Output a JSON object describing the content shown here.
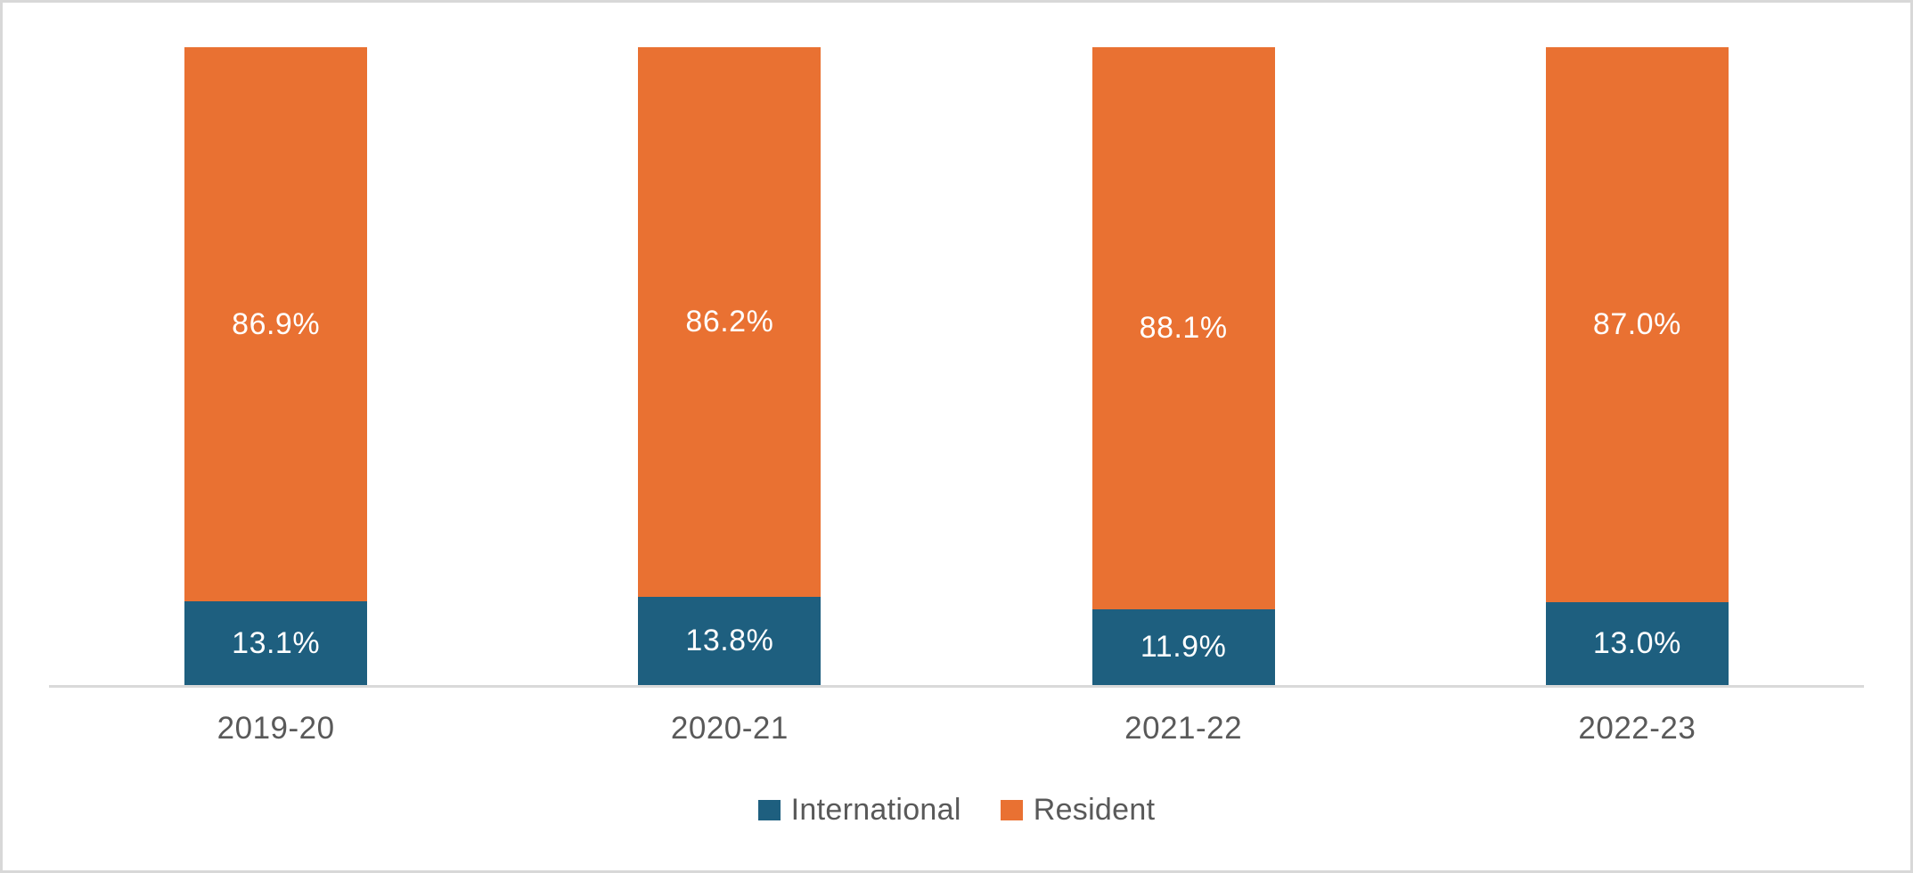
{
  "chart_data": {
    "type": "bar",
    "stacked": true,
    "percent_stacked": true,
    "title": "",
    "xlabel": "",
    "ylabel": "",
    "ylim": [
      0,
      100
    ],
    "grid": false,
    "legend_position": "bottom",
    "categories": [
      "2019-20",
      "2020-21",
      "2021-22",
      "2022-23"
    ],
    "series": [
      {
        "name": "International",
        "color": "#1E5F7F",
        "values": [
          13.1,
          13.8,
          11.9,
          13.0
        ],
        "labels": [
          "13.1%",
          "13.8%",
          "11.9%",
          "13.0%"
        ]
      },
      {
        "name": "Resident",
        "color": "#E97132",
        "values": [
          86.9,
          86.2,
          88.1,
          87.0
        ],
        "labels": [
          "86.9%",
          "86.2%",
          "88.1%",
          "87.0%"
        ]
      }
    ],
    "colors": {
      "data_label": "#FFFFFF",
      "axis_line": "#D9D9D9",
      "category_label": "#595959",
      "legend_text": "#595959",
      "frame_border": "#D8D8D8",
      "background": "#FFFFFF"
    }
  }
}
